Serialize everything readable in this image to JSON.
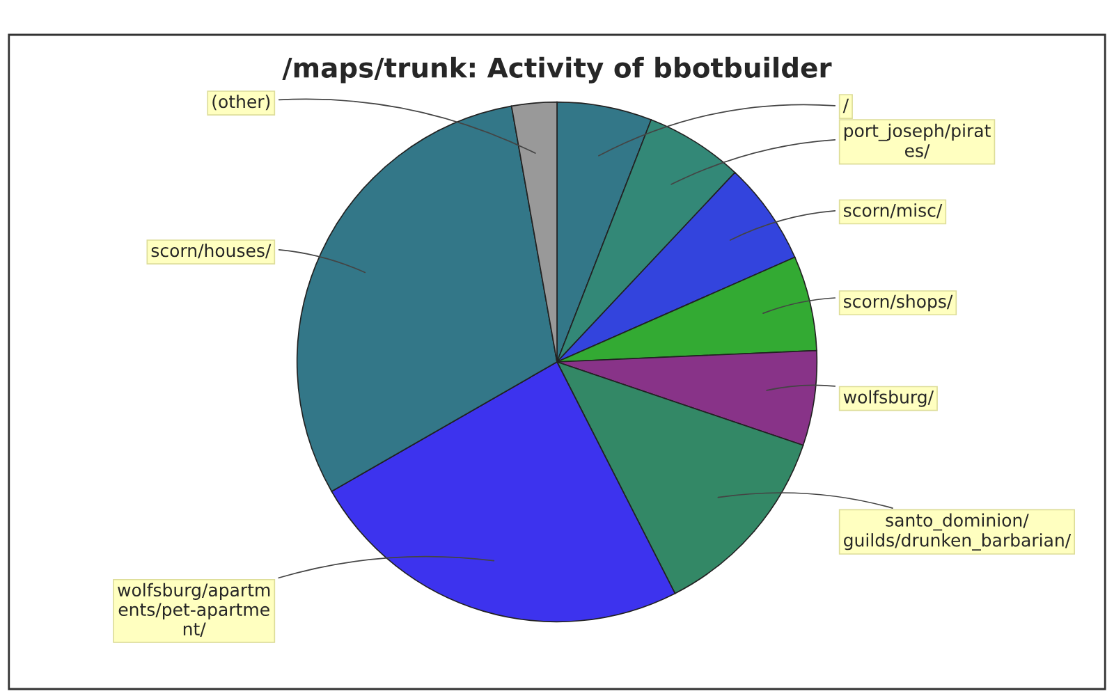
{
  "chart_data": {
    "type": "pie",
    "title": "/maps/trunk: Activity of bbotbuilder",
    "categories": [
      "/",
      "port_joseph/pirat\nes/",
      "scorn/misc/",
      "scorn/shops/",
      "wolfsburg/",
      "santo_dominion/\nguilds/drunken_barbarian/",
      "wolfsburg/apartm\nents/pet-apartme\nnt/",
      "scorn/houses/",
      "(other)"
    ],
    "values": [
      5.9,
      6.1,
      6.4,
      5.9,
      5.9,
      12.3,
      24.2,
      30.5,
      2.8
    ],
    "colors": [
      "#337788",
      "#338877",
      "#3344dd",
      "#33aa33",
      "#883388",
      "#338866",
      "#3d33ee",
      "#337788",
      "#999999"
    ]
  }
}
